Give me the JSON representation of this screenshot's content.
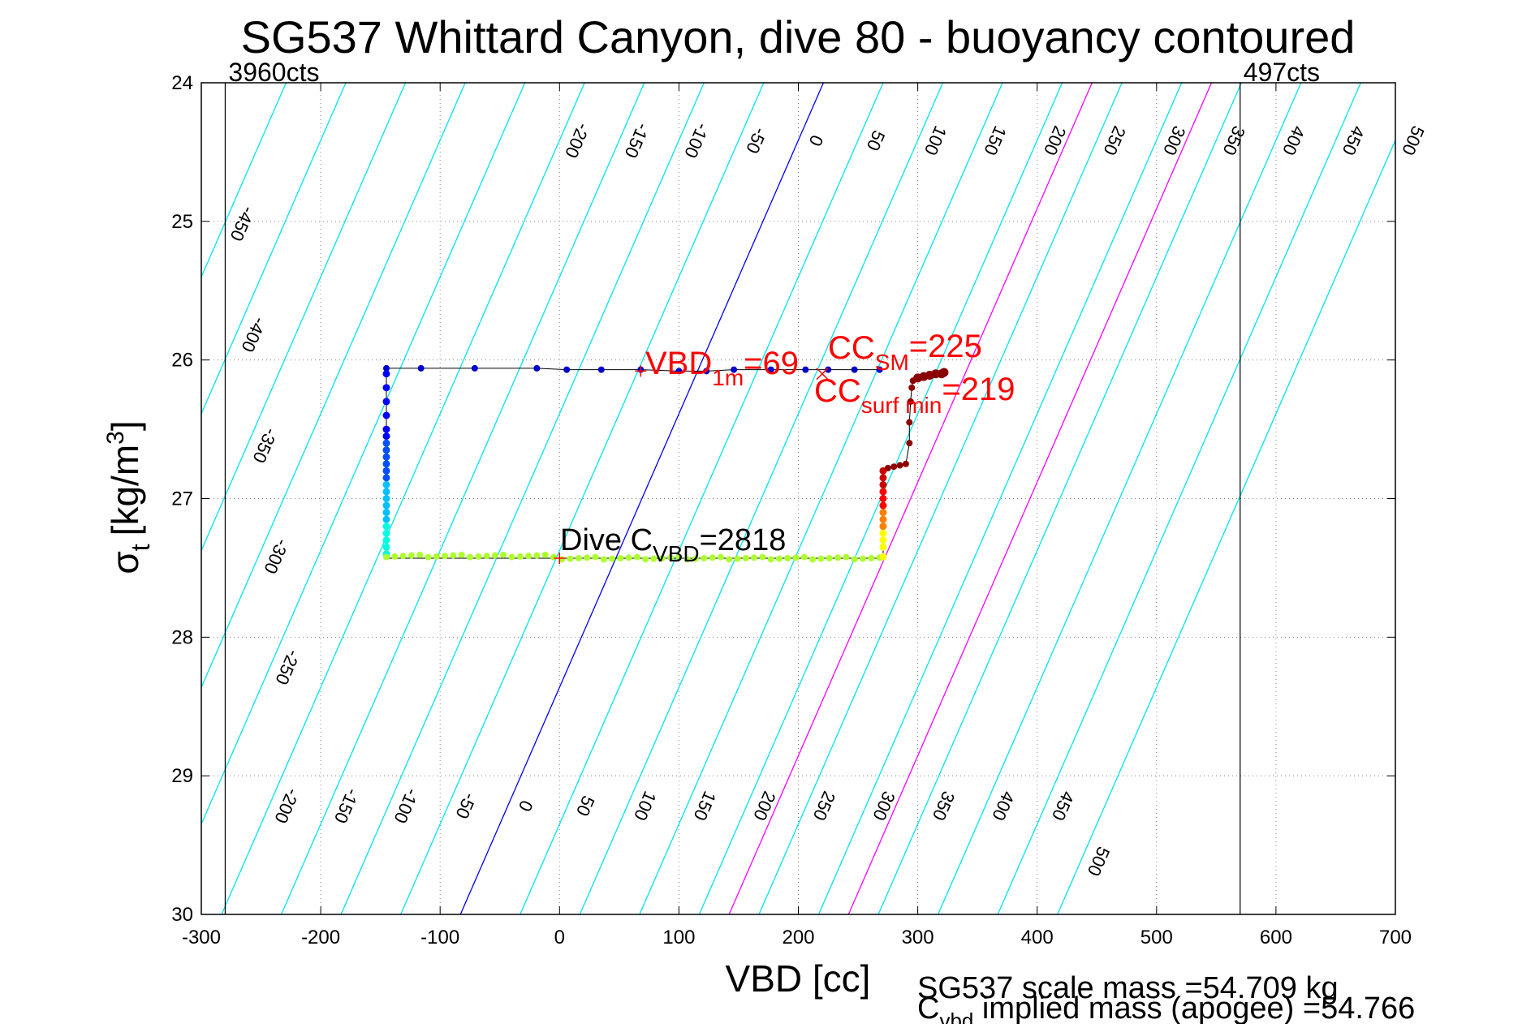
{
  "chart_data": {
    "type": "scatter",
    "title": "SG537 Whittard Canyon, dive 80 - buoyancy contoured",
    "xlabel": "VBD [cc]",
    "ylabel": {
      "main": "σ",
      "sub": "t",
      "unit_prefix": "[kg/m",
      "unit_sup": "3",
      "unit_suffix": "]"
    },
    "xlim": [
      -300,
      700
    ],
    "ylim": [
      24,
      30
    ],
    "y_reversed": true,
    "xticks": [
      -300,
      -200,
      -100,
      0,
      100,
      200,
      300,
      400,
      500,
      600,
      700
    ],
    "yticks": [
      24,
      25,
      26,
      27,
      28,
      29,
      30
    ],
    "grid": true,
    "grid_style": "dotted",
    "vertical_limits": [
      {
        "x": -280,
        "label": "3960cts"
      },
      {
        "x": 570,
        "label": "497cts"
      }
    ],
    "buoyancy_contours": {
      "values": [
        -450,
        -400,
        -350,
        -300,
        -250,
        -200,
        -150,
        -100,
        -50,
        0,
        50,
        100,
        150,
        200,
        250,
        300,
        350,
        400,
        450,
        500
      ],
      "top_labels": [
        -200,
        -150,
        -100,
        -50,
        0,
        50,
        100,
        150,
        200,
        250,
        300,
        350,
        400,
        450,
        500
      ],
      "left_labels": [
        -450,
        -400,
        -350,
        -300,
        -250
      ],
      "bottom_labels": [
        -200,
        -150,
        -100,
        -50,
        0,
        50,
        100,
        150,
        200,
        250,
        300,
        350,
        400,
        450,
        500
      ],
      "zero_color": "#0000ff",
      "highlight_values": [
        225,
        325
      ],
      "highlight_color": "#ff00ff",
      "other_color": "#00e5ee",
      "vbd_at_sigma24_for_zero": 221,
      "vbd_at_sigma30_for_zero": -83
    },
    "series": [
      {
        "role": "dive_descent_surface",
        "color": "#0000cc",
        "x": [
          -145,
          -116,
          -71,
          -19,
          6,
          35,
          68,
          100,
          123,
          146,
          177,
          206,
          225,
          247,
          268
        ],
        "y": [
          26.06,
          26.06,
          26.06,
          26.06,
          26.07,
          26.07,
          26.07,
          26.08,
          26.08,
          26.07,
          26.07,
          26.07,
          26.07,
          26.07,
          26.07
        ]
      },
      {
        "role": "descent_vertical",
        "colors": [
          "#0000ff",
          "#0050ff",
          "#00c0ff",
          "#00ffe0"
        ],
        "x": -145,
        "y": [
          26.1,
          26.2,
          26.3,
          26.4,
          26.5,
          26.55,
          26.6,
          26.65,
          26.7,
          26.75,
          26.8,
          26.85,
          26.9,
          26.95,
          27.0,
          27.05,
          27.1,
          27.15,
          27.2,
          27.25,
          27.3,
          27.35,
          27.4
        ]
      },
      {
        "role": "apogee_bottom",
        "color": "#adff2f",
        "x_start": -145,
        "x_end": 272,
        "y": 27.43
      },
      {
        "role": "ascent_vertical",
        "colors": [
          "#ffff00",
          "#ff8000",
          "#ff0000",
          "#cc0000"
        ],
        "x": 271,
        "y": [
          27.42,
          27.35,
          27.3,
          27.25,
          27.2,
          27.15,
          27.1,
          27.05,
          27.0,
          26.95,
          26.9,
          26.85,
          26.8
        ]
      },
      {
        "role": "ascent_upper",
        "color": "#8b0000",
        "x": [
          275,
          280,
          285,
          290,
          293,
          293,
          294,
          295,
          296,
          300,
          305,
          310,
          315,
          320,
          322
        ],
        "y": [
          26.78,
          26.77,
          26.76,
          26.75,
          26.6,
          26.45,
          26.3,
          26.2,
          26.15,
          26.13,
          26.12,
          26.11,
          26.1,
          26.1,
          26.09
        ]
      }
    ],
    "markers": [
      {
        "name": "vbd-1m",
        "x": 68,
        "y": 26.08,
        "color": "#ff0000"
      },
      {
        "name": "cc-surf-min",
        "x": 220,
        "y": 26.1,
        "color": "#ff0000"
      },
      {
        "name": "dive-c-vbd",
        "x": 0,
        "y": 27.43,
        "color": "#ff0000"
      }
    ],
    "annotations": {
      "vbd_1m": {
        "main": "VBD",
        "sub": "1m",
        "suffix": "=69"
      },
      "cc_sm": {
        "main": "CC",
        "sub": "SM",
        "suffix": "=225"
      },
      "cc_surf_min": {
        "main": "CC",
        "sub": "surf min",
        "suffix": "=219"
      },
      "dive_c_vbd": {
        "main": "Dive C",
        "sub": "VBD",
        "suffix": "=2818"
      }
    },
    "footer": {
      "line1": "SG537 scale mass =54.709 kg",
      "line2_main": "C",
      "line2_sub": "vbd",
      "line2_rest": " implied mass (apogee) =54.766"
    }
  }
}
